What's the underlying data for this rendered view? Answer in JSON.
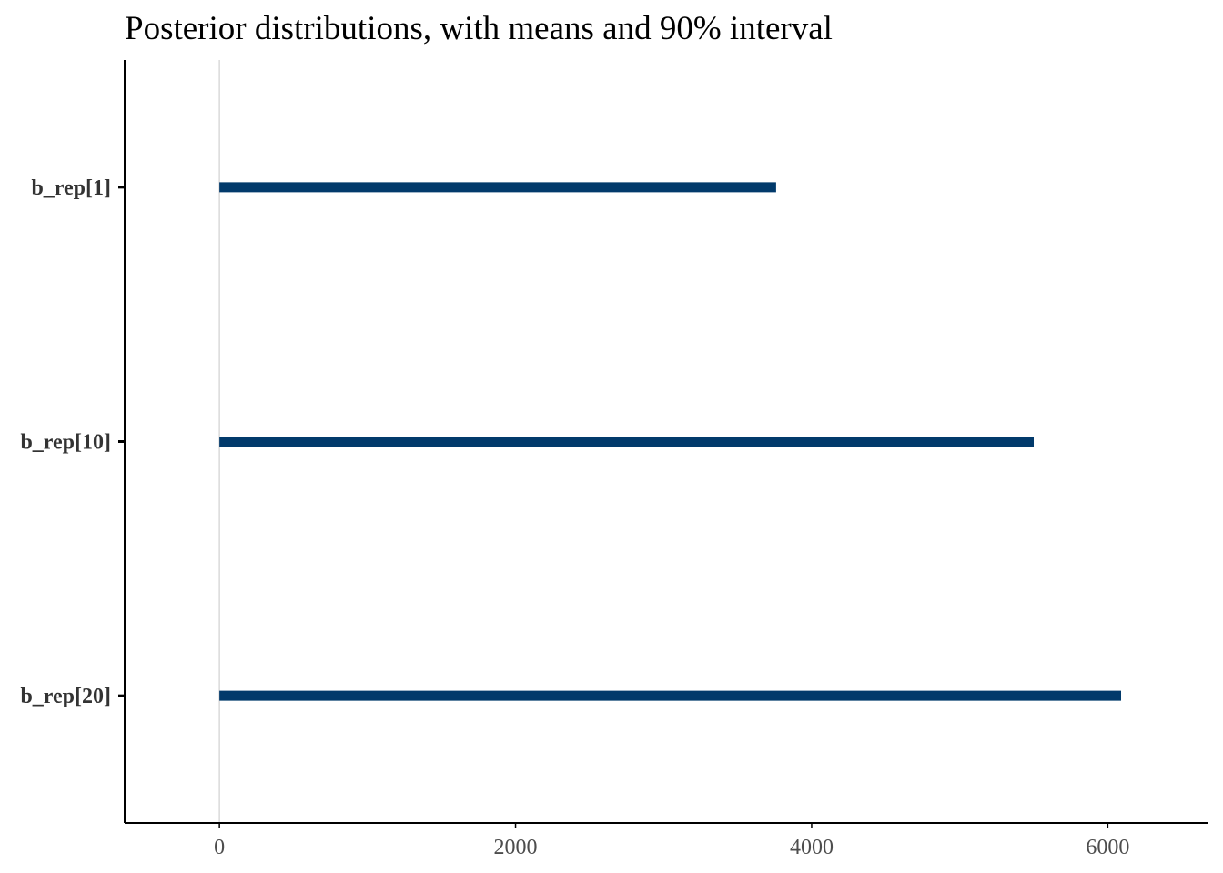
{
  "chart_data": {
    "type": "interval",
    "title": "Posterior distributions, with means and 90% interval",
    "xlabel": "",
    "ylabel": "",
    "categories": [
      "b_rep[1]",
      "b_rep[10]",
      "b_rep[20]"
    ],
    "intervals": [
      {
        "parameter": "b_rep[1]",
        "low": 0,
        "high": 3760
      },
      {
        "parameter": "b_rep[10]",
        "low": 0,
        "high": 5500
      },
      {
        "parameter": "b_rep[20]",
        "low": 0,
        "high": 6090
      }
    ],
    "xlim": [
      -640,
      6680
    ],
    "xticks": [
      0,
      2000,
      4000,
      6000
    ],
    "xtick_labels": [
      "0",
      "2000",
      "4000",
      "6000"
    ],
    "reference_line": 0,
    "grid": false,
    "legend": "none",
    "colors": {
      "interval": "#023a6b",
      "reference_line": "#d9d9d9",
      "axis": "#000000",
      "tick_label": "#4d4d4d",
      "category_label": "#333333"
    }
  }
}
